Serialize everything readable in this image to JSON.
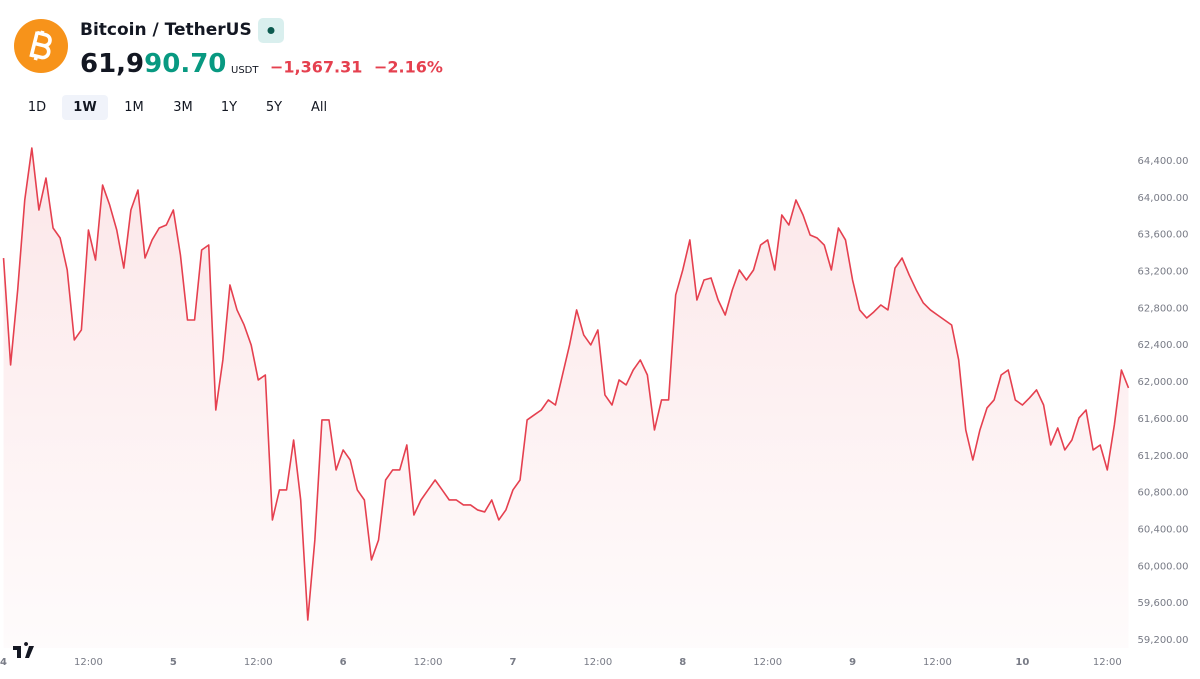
{
  "header": {
    "symbol": "Bitcoin / TetherUS",
    "price_main": "61,9",
    "price_highlight": "90.70",
    "currency": "USDT",
    "change": "−1,367.31",
    "change_pct": "−2.16%"
  },
  "ranges": {
    "options": [
      "1D",
      "1W",
      "1M",
      "3M",
      "1Y",
      "5Y",
      "All"
    ],
    "active": 1
  },
  "chart_data": {
    "type": "area",
    "color": "#e5404f",
    "x": [
      0,
      1,
      2,
      3,
      4,
      5,
      6,
      7,
      8,
      9,
      10,
      11,
      12,
      13,
      14,
      15,
      16,
      17,
      18,
      19,
      20,
      21,
      22,
      23,
      24,
      25,
      26,
      27,
      28,
      29,
      30,
      31,
      32,
      33,
      34,
      35,
      36,
      37,
      38,
      39,
      40,
      41,
      42,
      43,
      44,
      45,
      46,
      47,
      48,
      49,
      50,
      51,
      52,
      53,
      54,
      55,
      56,
      57,
      58,
      59,
      60,
      61,
      62,
      63,
      64,
      65,
      66,
      67,
      68,
      69,
      70,
      71,
      72,
      73,
      74,
      75,
      76,
      77,
      78,
      79,
      80,
      81,
      82,
      83,
      84,
      85,
      86,
      87,
      88,
      89,
      90,
      91,
      92,
      93,
      94,
      95,
      96,
      97,
      98,
      99,
      100,
      101,
      102,
      103,
      104,
      105,
      106,
      107,
      108,
      109,
      110,
      111,
      112,
      113,
      114,
      115,
      116,
      117,
      118,
      119,
      120,
      121,
      122,
      123,
      124,
      125,
      126,
      127,
      128,
      129,
      130,
      131,
      132,
      133,
      134,
      135,
      136,
      137,
      138,
      139,
      140,
      141,
      142,
      143,
      144,
      145,
      146,
      147,
      148,
      149,
      150,
      151,
      152,
      153,
      154,
      155,
      156,
      157,
      158,
      159
    ],
    "values": [
      63347,
      62186,
      63000,
      63977,
      64541,
      63868,
      64215,
      63673,
      63564,
      63217,
      62457,
      62566,
      63651,
      63325,
      64139,
      63922,
      63651,
      63238,
      63868,
      64085,
      63347,
      63543,
      63673,
      63705,
      63868,
      63380,
      62674,
      62674,
      63434,
      63488,
      61697,
      62240,
      63054,
      62783,
      62620,
      62403,
      62023,
      62077,
      60503,
      60829,
      60829,
      61371,
      60720,
      59417,
      60286,
      61589,
      61589,
      61046,
      61263,
      61154,
      60829,
      60720,
      60069,
      60286,
      60937,
      61046,
      61046,
      61317,
      60557,
      60720,
      60829,
      60937,
      60829,
      60720,
      60720,
      60666,
      60666,
      60612,
      60590,
      60720,
      60503,
      60612,
      60829,
      60937,
      61589,
      61643,
      61697,
      61806,
      61751,
      62077,
      62403,
      62783,
      62512,
      62403,
      62566,
      61860,
      61751,
      62023,
      61969,
      62131,
      62240,
      62077,
      61480,
      61806,
      61806,
      62946,
      63217,
      63543,
      62891,
      63108,
      63130,
      62891,
      62728,
      63000,
      63217,
      63108,
      63217,
      63488,
      63543,
      63217,
      63814,
      63705,
      63977,
      63814,
      63597,
      63564,
      63488,
      63217,
      63673,
      63543,
      63108,
      62783,
      62696,
      62761,
      62837,
      62783,
      63238,
      63347,
      63163,
      63000,
      62859,
      62783,
      62728,
      62674,
      62620,
      62240,
      61480,
      61154,
      61480,
      61719,
      61806,
      62077,
      62131,
      61806,
      61751,
      61828,
      61915,
      61751,
      61317,
      61502,
      61263,
      61371,
      61611,
      61697,
      61263,
      61317,
      61046,
      61534,
      62131,
      61936
    ],
    "xlim": [
      -0.5,
      159
    ],
    "xticks": [
      {
        "value": 0,
        "label": "4"
      },
      {
        "value": 12,
        "label": "12:00"
      },
      {
        "value": 24,
        "label": "5"
      },
      {
        "value": 36,
        "label": "12:00"
      },
      {
        "value": 48,
        "label": "6"
      },
      {
        "value": 60,
        "label": "12:00"
      },
      {
        "value": 72,
        "label": "7"
      },
      {
        "value": 84,
        "label": "12:00"
      },
      {
        "value": 96,
        "label": "8"
      },
      {
        "value": 108,
        "label": "12:00"
      },
      {
        "value": 120,
        "label": "9"
      },
      {
        "value": 132,
        "label": "12:00"
      },
      {
        "value": 144,
        "label": "10"
      },
      {
        "value": 156,
        "label": "12:00"
      }
    ],
    "ylim": [
      59113,
      64791
    ],
    "yticks": [
      {
        "value": 59200,
        "label": "59,200.00"
      },
      {
        "value": 59600,
        "label": "59,600.00"
      },
      {
        "value": 60000,
        "label": "60,000.00"
      },
      {
        "value": 60400,
        "label": "60,400.00"
      },
      {
        "value": 60800,
        "label": "60,800.00"
      },
      {
        "value": 61200,
        "label": "61,200.00"
      },
      {
        "value": 61600,
        "label": "61,600.00"
      },
      {
        "value": 62000,
        "label": "62,000.00"
      },
      {
        "value": 62400,
        "label": "62,400.00"
      },
      {
        "value": 62800,
        "label": "62,800.00"
      },
      {
        "value": 63200,
        "label": "63,200.00"
      },
      {
        "value": 63600,
        "label": "63,600.00"
      },
      {
        "value": 64000,
        "label": "64,000.00"
      },
      {
        "value": 64400,
        "label": "64,400.00"
      }
    ],
    "grid": false
  }
}
